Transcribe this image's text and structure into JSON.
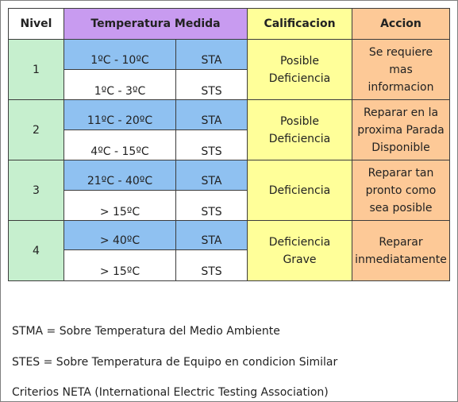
{
  "headers": {
    "nivel": "Nivel",
    "temperatura": "Temperatura Medida",
    "calificacion": "Calificacion",
    "accion": "Accion"
  },
  "rows": [
    {
      "nivel": "1",
      "sta": "1ºC - 10ºC",
      "sta_code": "STA",
      "sts": "1ºC - 3ºC",
      "sts_code": "STS",
      "calificacion": "Posible Deficiencia",
      "accion": "Se requiere mas informacion"
    },
    {
      "nivel": "2",
      "sta": "11ºC - 20ºC",
      "sta_code": "STA",
      "sts": "4ºC - 15ºC",
      "sts_code": "STS",
      "calificacion": "Posible Deficiencia",
      "accion": "Reparar en la proxima Parada Disponible"
    },
    {
      "nivel": "3",
      "sta": "21ºC - 40ºC",
      "sta_code": "STA",
      "sts": "> 15ºC",
      "sts_code": "STS",
      "calificacion": "Deficiencia",
      "accion": "Reparar tan pronto como sea posible"
    },
    {
      "nivel": "4",
      "sta": "> 40ºC",
      "sta_code": "STA",
      "sts": "> 15ºC",
      "sts_code": "STS",
      "calificacion": "Deficiencia Grave",
      "accion": "Reparar inmediatamente"
    }
  ],
  "notes": [
    "STMA = Sobre Temperatura del Medio Ambiente",
    "STES = Sobre Temperatura de Equipo en condicion Similar",
    "Criterios NETA (International Electric Testing Association)"
  ],
  "colors": {
    "nivel": "#c6efce",
    "temperatura_header": "#c89bf0",
    "sta_row": "#8fc1f1",
    "calificacion": "#ffff99",
    "accion": "#fdc997"
  }
}
